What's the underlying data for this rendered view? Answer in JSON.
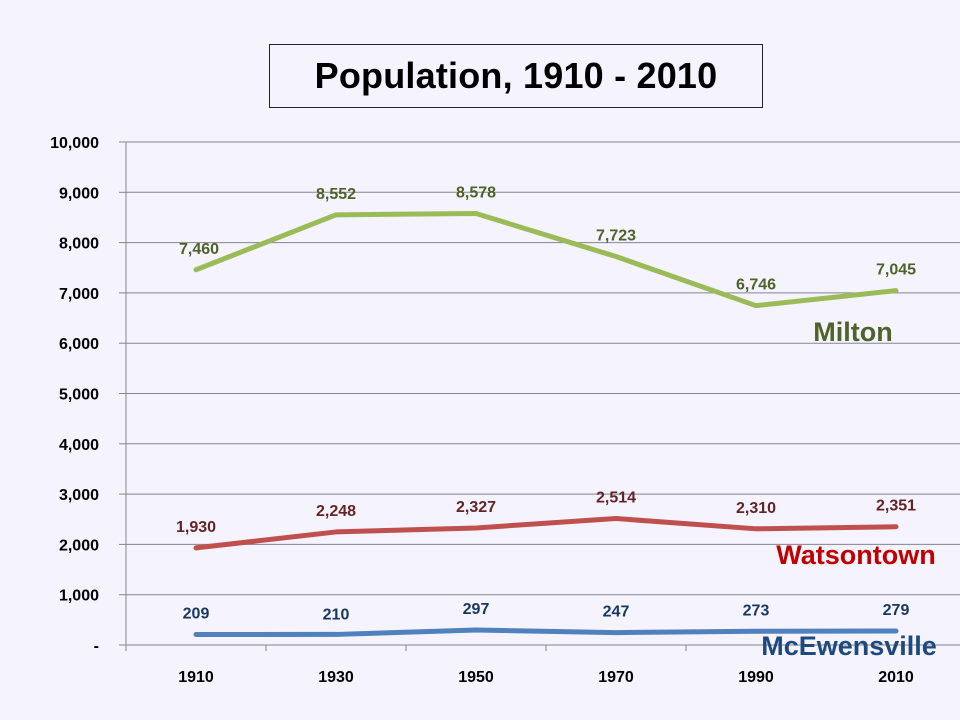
{
  "chart_data": {
    "type": "line",
    "title": "Population, 1910 - 2010",
    "xlabel": "",
    "ylabel": "",
    "categories": [
      "1910",
      "1930",
      "1950",
      "1970",
      "1990",
      "2010"
    ],
    "ylim": [
      0,
      10000
    ],
    "yticks": [
      0,
      1000,
      2000,
      3000,
      4000,
      5000,
      6000,
      7000,
      8000,
      9000,
      10000
    ],
    "ytick_labels": [
      "-",
      "1,000",
      "2,000",
      "3,000",
      "4,000",
      "5,000",
      "6,000",
      "7,000",
      "8,000",
      "9,000",
      "10,000"
    ],
    "grid": true,
    "legend": "inline labels at right end of each line",
    "series": [
      {
        "name": "Milton",
        "color": "#9bbb59",
        "label_color": "#4f6228",
        "values": [
          7460,
          8552,
          8578,
          7723,
          6746,
          7045
        ],
        "labels": [
          "7,460",
          "8,552",
          "8,578",
          "7,723",
          "6,746",
          "7,045"
        ]
      },
      {
        "name": "Watsontown",
        "color": "#c0504d",
        "label_color": "#632523",
        "name_color": "#c00000",
        "values": [
          1930,
          2248,
          2327,
          2514,
          2310,
          2351
        ],
        "labels": [
          "1,930",
          "2,248",
          "2,327",
          "2,514",
          "2,310",
          "2,351"
        ]
      },
      {
        "name": "McEwensville",
        "color": "#4f81bd",
        "label_color": "#17375e",
        "name_color": "#1f497d",
        "values": [
          209,
          210,
          297,
          247,
          273,
          279
        ],
        "labels": [
          "209",
          "210",
          "297",
          "247",
          "273",
          "279"
        ]
      }
    ]
  }
}
